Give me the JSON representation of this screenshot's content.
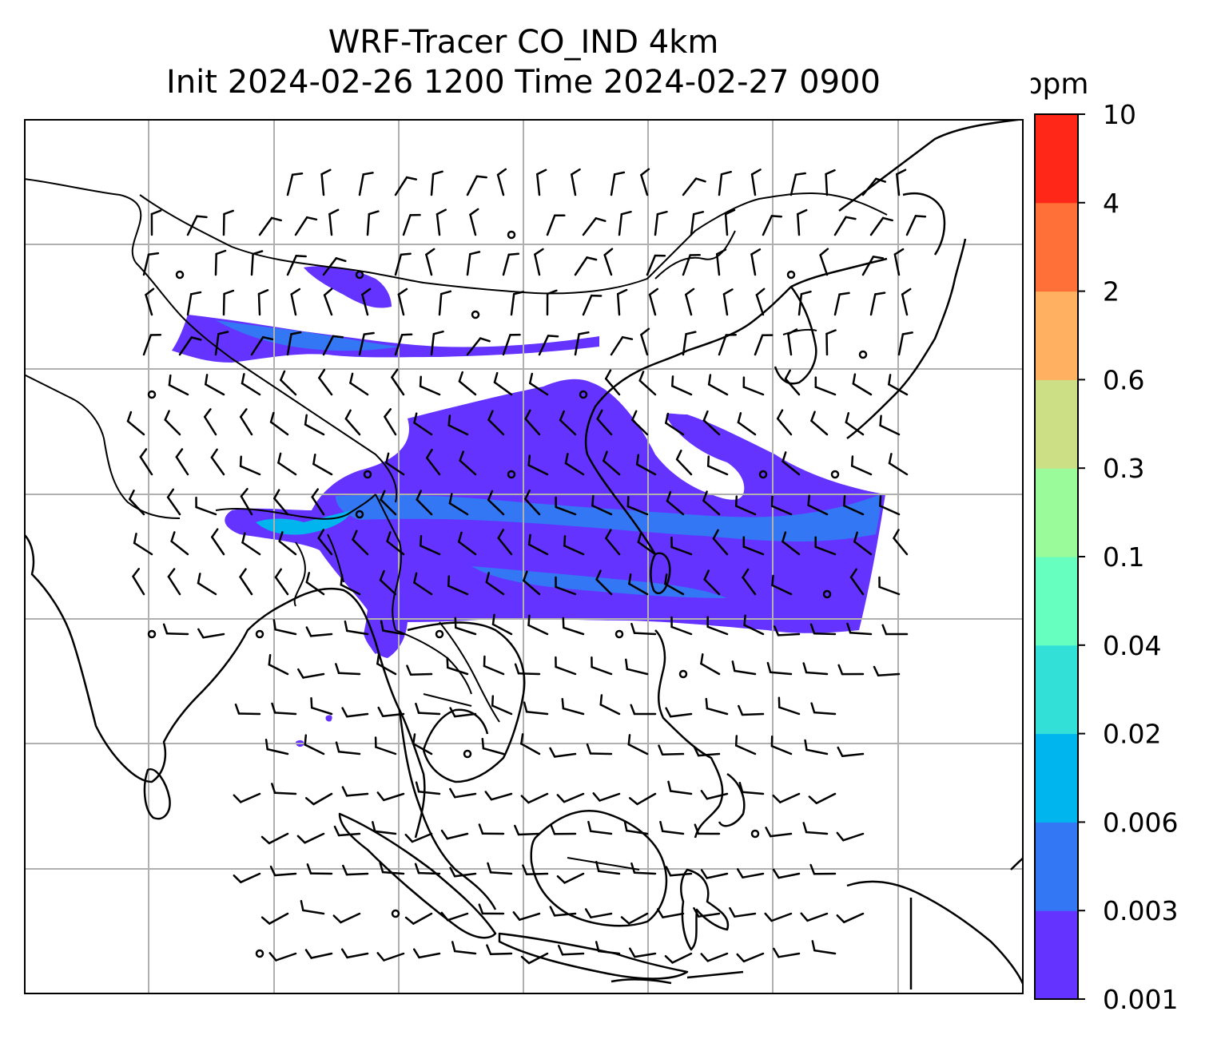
{
  "title": {
    "line1": "WRF-Tracer CO_IND 4km",
    "line2": "Init 2024-02-26 1200 Time 2024-02-27 0900"
  },
  "colorbar": {
    "unit": "ppm",
    "levels": [
      "0.001",
      "0.003",
      "0.006",
      "0.02",
      "0.04",
      "0.1",
      "0.3",
      "0.6",
      "2",
      "4",
      "10"
    ],
    "colors": [
      "#6433ff",
      "#3377f4",
      "#00b4ee",
      "#33e0d8",
      "#66ffc0",
      "#99fb99",
      "#ccdf85",
      "#ffb060",
      "#ff7038",
      "#ff2818"
    ]
  },
  "map": {
    "gridlines": true,
    "features": [
      "coastlines",
      "country-borders",
      "wind-barbs",
      "co-tracer-plume"
    ],
    "colors": {
      "coast": "#000000",
      "grid": "#b0b0b0",
      "plume_main": "#6433ff",
      "plume_core": "#3377f4",
      "plume_peak": "#00b4ee"
    }
  }
}
